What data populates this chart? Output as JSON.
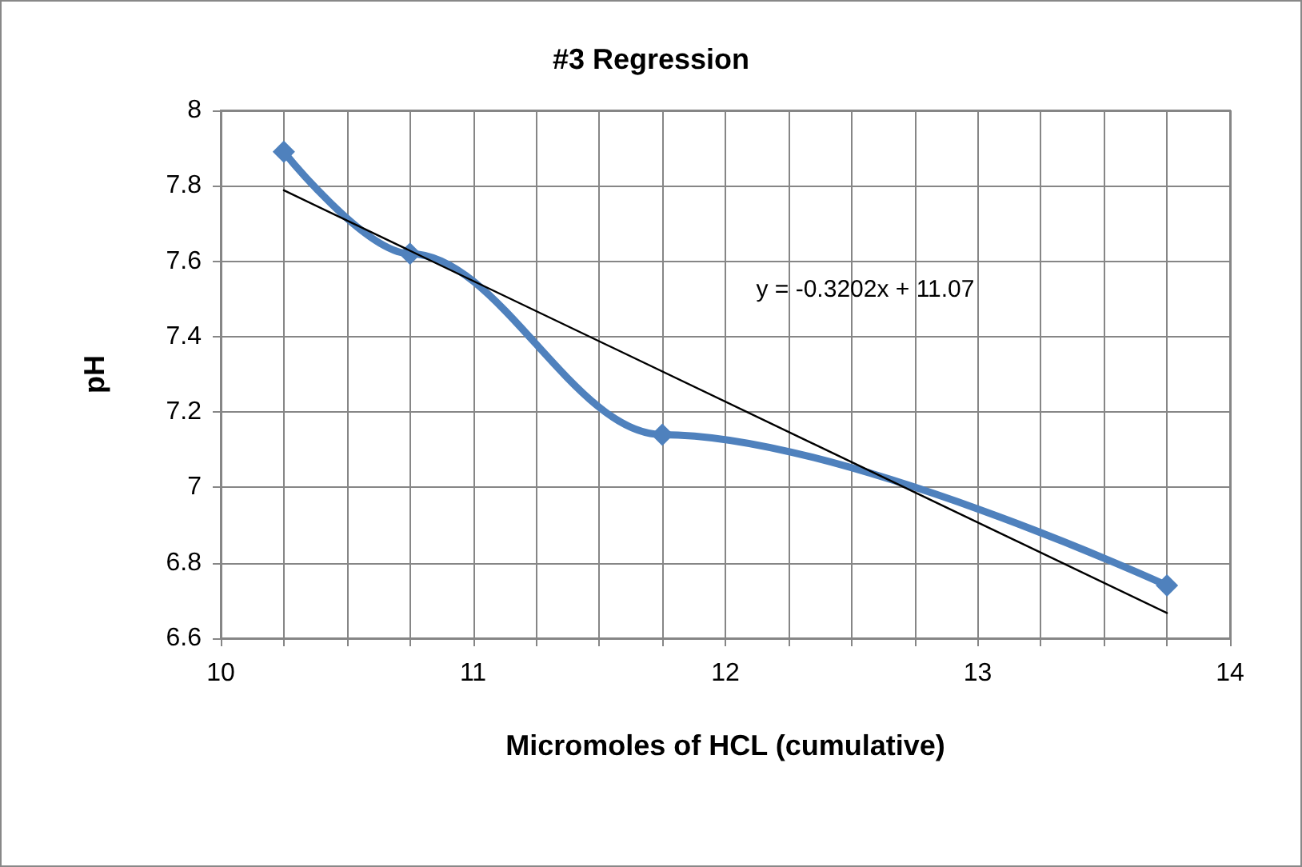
{
  "chart_data": {
    "type": "line",
    "title": "#3 Regression",
    "xlabel": "Micromoles of HCL (cumulative)",
    "ylabel": "pH",
    "series": [
      {
        "color": "#4f81bd",
        "x": [
          10.25,
          10.75,
          11.75,
          13.75
        ],
        "values": [
          7.89,
          7.62,
          7.14,
          6.74
        ],
        "marker": "diamond"
      },
      {
        "color": "#000000",
        "x": [
          10.25,
          13.75
        ],
        "values": [
          7.788,
          6.667
        ],
        "marker": "none"
      }
    ],
    "annotations": [
      "y = -0.3202x + 11.07"
    ],
    "xlim": [
      10,
      14
    ],
    "ylim": [
      6.6,
      8
    ],
    "xticks": [
      10,
      {
        "value": 10.25,
        "label": null
      },
      {
        "value": 10.5,
        "label": null
      },
      {
        "value": 10.75,
        "label": null
      },
      11,
      {
        "value": 11.25,
        "label": null
      },
      {
        "value": 11.5,
        "label": null
      },
      {
        "value": 11.75,
        "label": null
      },
      12,
      {
        "value": 12.25,
        "label": null
      },
      {
        "value": 12.5,
        "label": null
      },
      {
        "value": 12.75,
        "label": null
      },
      13,
      {
        "value": 13.25,
        "label": null
      },
      {
        "value": 13.5,
        "label": null
      },
      {
        "value": 13.75,
        "label": null
      },
      14
    ],
    "yticks": [
      6.6,
      6.8,
      7,
      7.2,
      7.4,
      7.6,
      7.8,
      8
    ],
    "grid": true
  }
}
